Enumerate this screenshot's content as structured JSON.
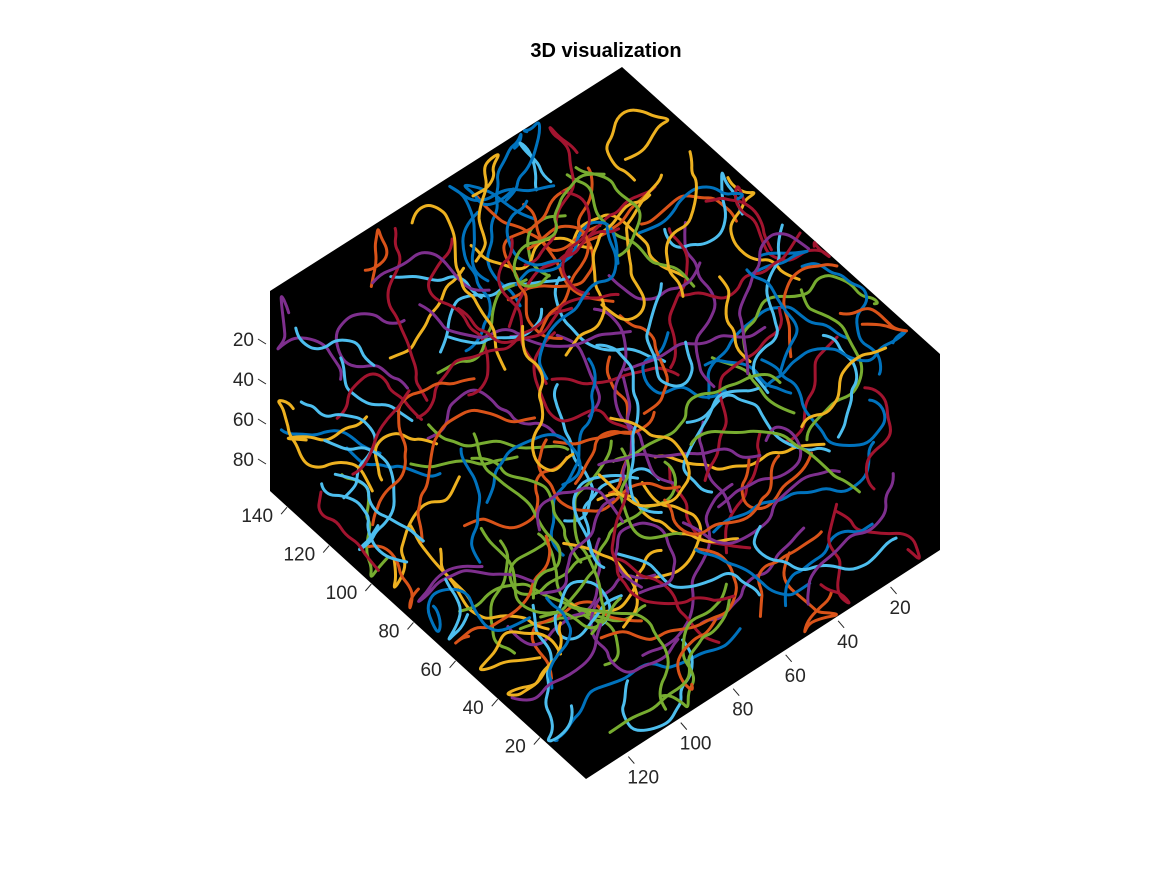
{
  "chart_data": {
    "type": "line",
    "title": "3D visualization",
    "view": "3d",
    "background_color": "#000000",
    "grid": false,
    "axes": {
      "z": {
        "ticks": [
          20,
          40,
          60,
          80
        ],
        "lim": [
          0,
          100
        ]
      },
      "x": {
        "ticks": [
          20,
          40,
          60,
          80,
          100,
          120,
          140
        ],
        "lim": [
          0,
          150
        ]
      },
      "y": {
        "ticks": [
          20,
          40,
          60,
          80,
          100,
          120
        ],
        "lim": [
          0,
          135
        ]
      }
    },
    "series_colors": [
      "#0072BD",
      "#D95319",
      "#EDB120",
      "#7E2F8E",
      "#77AC30",
      "#4DBEEE",
      "#A2142F"
    ],
    "track_count": 190
  }
}
